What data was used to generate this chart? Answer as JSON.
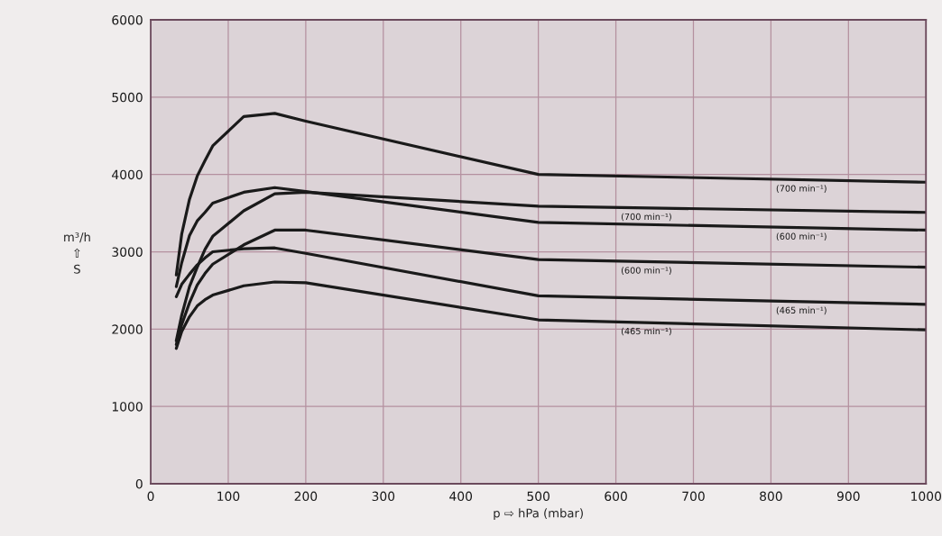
{
  "chart_data": {
    "type": "line",
    "xlabel": "p ⇨ hPa (mbar)",
    "ylabel": "m³/h\n⇧\nS",
    "x": [
      33,
      40,
      50,
      60,
      70,
      80,
      120,
      160,
      200,
      500,
      1000
    ],
    "series": [
      {
        "name": "(700 min⁻¹)",
        "color": "#1a1a1a",
        "values": [
          2700,
          3230,
          3680,
          3980,
          4180,
          4370,
          4750,
          4790,
          4690,
          4000,
          3900
        ]
      },
      {
        "name": "(700 min⁻¹)",
        "color": "#1a1a1a",
        "values": [
          1850,
          2180,
          2550,
          2800,
          3030,
          3200,
          3530,
          3750,
          3770,
          3590,
          3510
        ]
      },
      {
        "name": "(600 min⁻¹)",
        "color": "#1a1a1a",
        "values": [
          2550,
          2860,
          3210,
          3400,
          3510,
          3630,
          3770,
          3830,
          3780,
          3380,
          3280
        ]
      },
      {
        "name": "(600 min⁻¹)",
        "color": "#1a1a1a",
        "values": [
          1800,
          2060,
          2340,
          2570,
          2720,
          2840,
          3090,
          3280,
          3280,
          2900,
          2800
        ]
      },
      {
        "name": "(465 min⁻¹)",
        "color": "#1a1a1a",
        "values": [
          2420,
          2580,
          2710,
          2830,
          2920,
          3000,
          3040,
          3050,
          2980,
          2430,
          2320
        ]
      },
      {
        "name": "(465 min⁻¹)",
        "color": "#1a1a1a",
        "values": [
          1750,
          1970,
          2160,
          2300,
          2380,
          2440,
          2560,
          2610,
          2600,
          2120,
          1990
        ]
      }
    ],
    "xlim": [
      0,
      1000
    ],
    "ylim": [
      0,
      6000
    ],
    "xticks": [
      0,
      100,
      200,
      300,
      400,
      500,
      600,
      700,
      800,
      900,
      1000
    ],
    "yticks": [
      0,
      1000,
      2000,
      3000,
      4000,
      5000,
      6000
    ],
    "grid": true,
    "marker": "none",
    "line_style": "solid"
  }
}
